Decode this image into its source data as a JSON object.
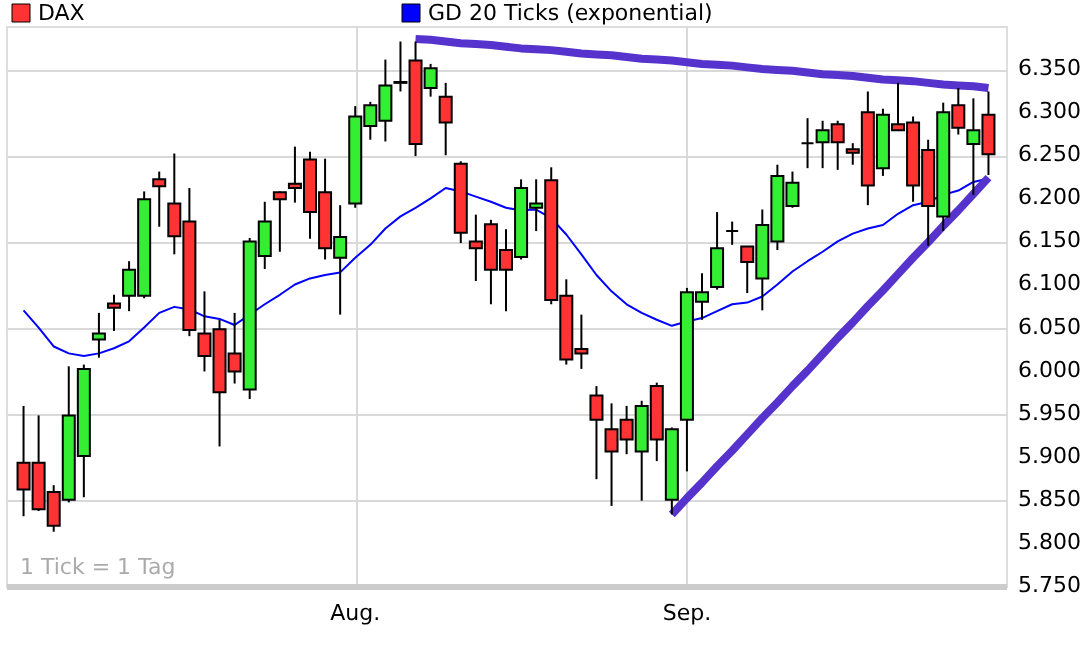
{
  "chart_data": {
    "type": "candlestick",
    "legend": "top left",
    "grid": true,
    "categories": [
      null,
      null,
      null,
      null,
      null,
      null,
      null,
      null,
      null,
      null,
      null,
      null,
      null,
      null,
      null,
      null,
      null,
      null,
      null,
      null,
      null,
      null,
      "Aug.",
      null,
      null,
      null,
      null,
      null,
      null,
      null,
      null,
      null,
      null,
      null,
      null,
      null,
      null,
      null,
      null,
      null,
      null,
      null,
      null,
      null,
      "Sep.",
      null,
      null,
      null,
      null,
      null,
      null,
      null,
      null,
      null,
      null,
      null,
      null,
      null,
      null,
      null,
      null,
      null,
      null,
      null,
      null
    ],
    "ylim": [
      5750,
      6400
    ],
    "yticks": [
      {
        "value": 5750,
        "label": "5.750"
      },
      {
        "value": 5800,
        "label": "5.800"
      },
      {
        "value": 5850,
        "label": "5.850"
      },
      {
        "value": 5900,
        "label": "5.900"
      },
      {
        "value": 5950,
        "label": "5.950"
      },
      {
        "value": 6000,
        "label": "6.000"
      },
      {
        "value": 6050,
        "label": "6.050"
      },
      {
        "value": 6100,
        "label": "6.100"
      },
      {
        "value": 6150,
        "label": "6.150"
      },
      {
        "value": 6200,
        "label": "6.200"
      },
      {
        "value": 6250,
        "label": "6.250"
      },
      {
        "value": 6300,
        "label": "6.300"
      },
      {
        "value": 6350,
        "label": "6.350"
      }
    ],
    "annotations": [
      "1 Tick = 1 Tag"
    ],
    "series": [
      {
        "name": "DAX",
        "type": "candlestick",
        "color": "#ff3333",
        "colors": [
          "#ff3333",
          "#ff3333",
          "#ff3333",
          "#33ee33",
          "#33ee33",
          "#33ee33",
          "#ff3333",
          "#33ee33",
          "#33ee33",
          "#ff3333",
          "#ff3333",
          "#ff3333",
          "#ff3333",
          "#ff3333",
          "#ff3333",
          "#33ee33",
          "#33ee33",
          "#ff3333",
          "#ff3333",
          "#ff3333",
          "#ff3333",
          "#33ee33",
          "#33ee33",
          "#33ee33",
          "#33ee33",
          "#000000",
          "#ff3333",
          "#33ee33",
          "#ff3333",
          "#ff3333",
          "#ff3333",
          "#ff3333",
          "#ff3333",
          "#33ee33",
          "#33ee33",
          "#ff3333",
          "#ff3333",
          "#ff3333",
          "#ff3333",
          "#ff3333",
          "#ff3333",
          "#33ee33",
          "#ff3333",
          "#33ee33",
          "#33ee33",
          "#33ee33",
          "#33ee33",
          "#000000",
          "#ff3333",
          "#33ee33",
          "#33ee33",
          "#33ee33",
          "#000000",
          "#33ee33",
          "#ff3333",
          "#ff3333",
          "#ff3333",
          "#33ee33",
          "#ff3333",
          "#ff3333",
          "#ff3333",
          "#33ee33",
          "#ff3333",
          "#33ee33",
          "#ff3333"
        ],
        "ohlc": [
          [
            5893,
            5959,
            5831,
            5862
          ],
          [
            5893,
            5948,
            5837,
            5839
          ],
          [
            5859,
            5867,
            5813,
            5820
          ],
          [
            5850,
            6005,
            5847,
            5948
          ],
          [
            5901,
            6007,
            5853,
            6002
          ],
          [
            6036,
            6067,
            6015,
            6043
          ],
          [
            6078,
            6088,
            6046,
            6073
          ],
          [
            6087,
            6127,
            6069,
            6117
          ],
          [
            6087,
            6208,
            6084,
            6199
          ],
          [
            6222,
            6231,
            6167,
            6214
          ],
          [
            6194,
            6252,
            6135,
            6156
          ],
          [
            6173,
            6212,
            6040,
            6047
          ],
          [
            6043,
            6092,
            5999,
            6017
          ],
          [
            6048,
            6059,
            5912,
            5975
          ],
          [
            6020,
            6067,
            5985,
            5999
          ],
          [
            5978,
            6154,
            5967,
            6150
          ],
          [
            6133,
            6196,
            6118,
            6173
          ],
          [
            6207,
            6208,
            6138,
            6199
          ],
          [
            6217,
            6260,
            6195,
            6212
          ],
          [
            6245,
            6254,
            6153,
            6184
          ],
          [
            6207,
            6246,
            6129,
            6142
          ],
          [
            6131,
            6192,
            6065,
            6155
          ],
          [
            6194,
            6307,
            6189,
            6295
          ],
          [
            6284,
            6312,
            6268,
            6308
          ],
          [
            6290,
            6361,
            6266,
            6331
          ],
          [
            6334,
            6382,
            6324,
            6335
          ],
          [
            6360,
            6382,
            6249,
            6263
          ],
          [
            6328,
            6356,
            6318,
            6351
          ],
          [
            6318,
            6334,
            6250,
            6288
          ],
          [
            6240,
            6243,
            6148,
            6160
          ],
          [
            6150,
            6181,
            6104,
            6142
          ],
          [
            6170,
            6175,
            6077,
            6117
          ],
          [
            6140,
            6164,
            6069,
            6117
          ],
          [
            6132,
            6222,
            6129,
            6212
          ],
          [
            6189,
            6222,
            6162,
            6194
          ],
          [
            6221,
            6236,
            6077,
            6082
          ],
          [
            6087,
            6106,
            6007,
            6013
          ],
          [
            6025,
            6065,
            6002,
            6020
          ],
          [
            5971,
            5982,
            5874,
            5943
          ],
          [
            5932,
            5962,
            5843,
            5906
          ],
          [
            5943,
            5959,
            5903,
            5920
          ],
          [
            5906,
            5965,
            5849,
            5959
          ],
          [
            5982,
            5986,
            5895,
            5920
          ],
          [
            5850,
            5934,
            5833,
            5932
          ],
          [
            5943,
            6096,
            5883,
            6091
          ],
          [
            6080,
            6113,
            6059,
            6091
          ],
          [
            6097,
            6184,
            6094,
            6142
          ],
          [
            6162,
            6173,
            6146,
            6162
          ],
          [
            6144,
            6144,
            6090,
            6126
          ],
          [
            6107,
            6187,
            6070,
            6169
          ],
          [
            6150,
            6239,
            6140,
            6226
          ],
          [
            6191,
            6231,
            6189,
            6218
          ],
          [
            6264,
            6293,
            6235,
            6264
          ],
          [
            6265,
            6290,
            6235,
            6279
          ],
          [
            6286,
            6290,
            6233,
            6265
          ],
          [
            6257,
            6264,
            6239,
            6253
          ],
          [
            6300,
            6324,
            6192,
            6215
          ],
          [
            6235,
            6304,
            6226,
            6297
          ],
          [
            6286,
            6334,
            6279,
            6279
          ],
          [
            6288,
            6295,
            6196,
            6215
          ],
          [
            6256,
            6268,
            6145,
            6191
          ],
          [
            6179,
            6311,
            6162,
            6300
          ],
          [
            6308,
            6328,
            6274,
            6282
          ],
          [
            6263,
            6316,
            6204,
            6279
          ],
          [
            6297,
            6324,
            6227,
            6251
          ]
        ]
      },
      {
        "name": "GD 20 Ticks (exponential)",
        "type": "line",
        "color": "#0000ff",
        "values": [
          6070,
          6050,
          6028,
          6020,
          6017,
          6020,
          6026,
          6034,
          6050,
          6067,
          6074,
          6071,
          6063,
          6060,
          6053,
          6065,
          6077,
          6088,
          6100,
          6107,
          6111,
          6114,
          6131,
          6146,
          6165,
          6179,
          6189,
          6200,
          6212,
          6208,
          6202,
          6196,
          6189,
          6186,
          6187,
          6177,
          6158,
          6135,
          6111,
          6092,
          6077,
          6067,
          6059,
          6052,
          6057,
          6061,
          6069,
          6077,
          6079,
          6086,
          6100,
          6115,
          6127,
          6138,
          6150,
          6159,
          6165,
          6169,
          6182,
          6192,
          6196,
          6204,
          6209,
          6219,
          6223
        ]
      },
      {
        "type": "line",
        "color": "#5533cc",
        "values": [
          null,
          null,
          null,
          null,
          null,
          null,
          null,
          null,
          null,
          null,
          null,
          null,
          null,
          null,
          null,
          null,
          null,
          null,
          null,
          null,
          null,
          null,
          null,
          null,
          null,
          null,
          6385,
          6384,
          6382,
          6380,
          6379,
          6378,
          6376,
          6374,
          6373,
          6372,
          6370,
          6368,
          6367,
          6366,
          6364,
          6362,
          6361,
          6360,
          6358,
          6356,
          6355,
          6354,
          6352,
          6350,
          6349,
          6348,
          6346,
          6344,
          6343,
          6342,
          6340,
          6338,
          6337,
          6336,
          6334,
          6332,
          6331,
          6330,
          6328
        ]
      },
      {
        "type": "line",
        "color": "#5533cc",
        "values": [
          null,
          null,
          null,
          null,
          null,
          null,
          null,
          null,
          null,
          null,
          null,
          null,
          null,
          null,
          null,
          null,
          null,
          null,
          null,
          null,
          null,
          null,
          null,
          null,
          null,
          null,
          null,
          null,
          null,
          null,
          null,
          null,
          null,
          null,
          null,
          null,
          null,
          null,
          null,
          null,
          null,
          null,
          null,
          5833,
          5852,
          5870,
          5889,
          5907,
          5926,
          5945,
          5963,
          5982,
          6000,
          6019,
          6038,
          6056,
          6075,
          6093,
          6112,
          6131,
          6149,
          6168,
          6186,
          6205,
          6224
        ]
      }
    ]
  }
}
